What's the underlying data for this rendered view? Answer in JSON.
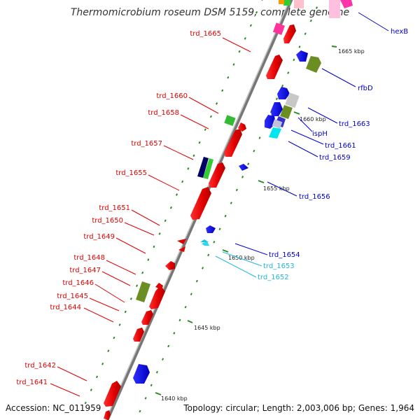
{
  "title": "Thermomicrobium roseum DSM 5159, complete genome",
  "footer": {
    "accession": "Accession: NC_011959",
    "summary": "Topology: circular; Length: 2,003,006 bp; Genes: 1,964"
  },
  "colors": {
    "forward_label": "#e00000",
    "reverse_label": "#0000cc",
    "cyan_label": "#22b5dd",
    "backbone": "#8a8a8a",
    "tick": "#2a8a2a"
  },
  "ticks": [
    {
      "label": "1665 kbp"
    },
    {
      "label": "1660 kbp"
    },
    {
      "label": "1655 kbp"
    },
    {
      "label": "1650 kbp"
    },
    {
      "label": "1645 kbp"
    },
    {
      "label": "1640 kbp"
    }
  ],
  "genes_forward": [
    {
      "name": "trd_1665",
      "color": "red"
    },
    {
      "name": "trd_1660",
      "color": "red"
    },
    {
      "name": "trd_1658",
      "color": "red"
    },
    {
      "name": "trd_1657",
      "color": "red"
    },
    {
      "name": "trd_1655",
      "color": "red"
    },
    {
      "name": "trd_1651",
      "color": "red"
    },
    {
      "name": "trd_1650",
      "color": "red"
    },
    {
      "name": "trd_1649",
      "color": "red"
    },
    {
      "name": "trd_1648",
      "color": "red"
    },
    {
      "name": "trd_1647",
      "color": "red"
    },
    {
      "name": "trd_1646",
      "color": "red"
    },
    {
      "name": "trd_1645",
      "color": "red"
    },
    {
      "name": "trd_1644",
      "color": "red"
    },
    {
      "name": "trd_1642",
      "color": "red"
    },
    {
      "name": "trd_1641",
      "color": "red"
    }
  ],
  "genes_reverse": [
    {
      "name": "hexB",
      "color": "blue"
    },
    {
      "name": "rfbD",
      "color": "blue"
    },
    {
      "name": "trd_1663",
      "color": "blue"
    },
    {
      "name": "ispH",
      "color": "blue"
    },
    {
      "name": "trd_1661",
      "color": "blue"
    },
    {
      "name": "trd_1659",
      "color": "blue"
    },
    {
      "name": "trd_1656",
      "color": "blue"
    },
    {
      "name": "trd_1654",
      "color": "blue"
    },
    {
      "name": "trd_1653",
      "color": "cyan"
    },
    {
      "name": "trd_1652",
      "color": "cyan"
    }
  ]
}
